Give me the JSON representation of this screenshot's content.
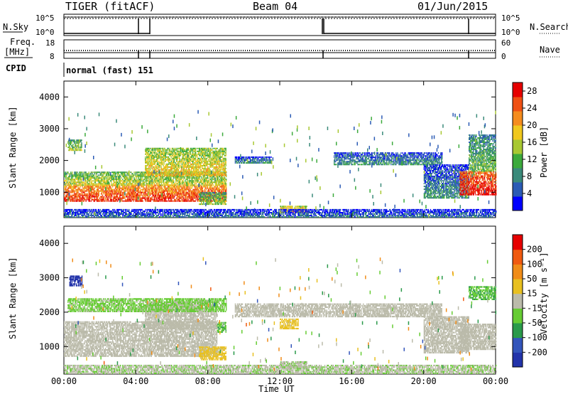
{
  "header": {
    "title": "TIGER (fitACF)",
    "beam": "Beam 04",
    "date": "01/Jun/2015"
  },
  "labels": {
    "n_sky": "N.Sky",
    "freq": "Freq.",
    "mhz": "[MHz]",
    "cpid": "CPID",
    "n_search": "N.Search",
    "nave": "Nave",
    "cpid_value": "normal (fast) 151",
    "power_unit": "Power [dB]",
    "velocity_unit": "Velocity [m s⁻¹]"
  },
  "panels": {
    "noise": {
      "left_ticks": [
        "10^5",
        "10^0"
      ],
      "right_ticks": [
        "10^5",
        "10^0"
      ]
    },
    "freq": {
      "left_ticks": [
        "18",
        "8"
      ],
      "right_ticks": [
        "60",
        "0"
      ]
    }
  },
  "colors": {
    "power_scale": [
      "#0000ff",
      "#2b5bb5",
      "#3a8a7a",
      "#3caa3c",
      "#a8c832",
      "#f0c81e",
      "#f58c1e",
      "#ef5014",
      "#e60000"
    ],
    "velocity_scale": [
      "#2233aa",
      "#3355bb",
      "#2a9a4a",
      "#66cc33",
      "#bbbbaa",
      "#e8c020",
      "#f08c18",
      "#f05a10",
      "#e60000"
    ],
    "ground_scatter": "#bbbbaa"
  },
  "chart_data": [
    {
      "type": "heatmap",
      "title": "Power",
      "xlabel": "Time UT",
      "ylabel": "Slant Range [km]",
      "x_ticks": [
        "00:00",
        "04:00",
        "08:00",
        "12:00",
        "16:00",
        "20:00",
        "00:00"
      ],
      "xlim": [
        0,
        24
      ],
      "ylim": [
        200,
        4500
      ],
      "y_ticks": [
        1000,
        2000,
        3000,
        4000
      ],
      "colorbar": {
        "label": "Power [dB]",
        "ticks": [
          4,
          8,
          12,
          16,
          20,
          24,
          28
        ],
        "range": [
          0,
          30
        ]
      },
      "regions": [
        {
          "t0": 0.0,
          "t1": 9.0,
          "r0": 700,
          "r1": 1200,
          "level": 24
        },
        {
          "t0": 0.0,
          "t1": 9.0,
          "r0": 1200,
          "r1": 1650,
          "level": 14
        },
        {
          "t0": 0.2,
          "t1": 1.0,
          "r0": 2300,
          "r1": 2650,
          "level": 12
        },
        {
          "t0": 4.5,
          "t1": 9.0,
          "r0": 1500,
          "r1": 2400,
          "level": 16
        },
        {
          "t0": 7.5,
          "t1": 9.0,
          "r0": 600,
          "r1": 1000,
          "level": 12
        },
        {
          "t0": 12.0,
          "t1": 13.5,
          "r0": 350,
          "r1": 550,
          "level": 18
        },
        {
          "t0": 9.5,
          "t1": 11.5,
          "r0": 1900,
          "r1": 2100,
          "level": 6
        },
        {
          "t0": 15.0,
          "t1": 21.0,
          "r0": 1850,
          "r1": 2250,
          "level": 6
        },
        {
          "t0": 20.0,
          "t1": 22.5,
          "r0": 800,
          "r1": 1850,
          "level": 6
        },
        {
          "t0": 22.0,
          "t1": 24.0,
          "r0": 900,
          "r1": 1650,
          "level": 26
        },
        {
          "t0": 22.5,
          "t1": 24.0,
          "r0": 1650,
          "r1": 2800,
          "level": 10
        },
        {
          "t0": 0.0,
          "t1": 24.0,
          "r0": 200,
          "r1": 450,
          "level": 4
        }
      ]
    },
    {
      "type": "heatmap",
      "title": "Velocity",
      "xlabel": "Time UT",
      "ylabel": "Slant Range [km]",
      "x_ticks": [
        "00:00",
        "04:00",
        "08:00",
        "12:00",
        "16:00",
        "20:00",
        "00:00"
      ],
      "xlim": [
        0,
        24
      ],
      "ylim": [
        200,
        4500
      ],
      "y_ticks": [
        1000,
        2000,
        3000,
        4000
      ],
      "colorbar": {
        "label": "Velocity [m s⁻¹]",
        "ticks": [
          -200,
          -100,
          -50,
          -15,
          15,
          50,
          100,
          200
        ],
        "range": [
          -250,
          250
        ]
      },
      "regions": [
        {
          "t0": 0.0,
          "t1": 8.5,
          "r0": 700,
          "r1": 1700,
          "level": 0
        },
        {
          "t0": 4.5,
          "t1": 8.5,
          "r0": 1500,
          "r1": 2300,
          "level": 0
        },
        {
          "t0": 0.3,
          "t1": 1.0,
          "r0": 2750,
          "r1": 3050,
          "level": -220
        },
        {
          "t0": 0.2,
          "t1": 9.0,
          "r0": 2000,
          "r1": 2400,
          "level": -40
        },
        {
          "t0": 7.5,
          "t1": 9.0,
          "r0": 600,
          "r1": 1000,
          "level": 45
        },
        {
          "t0": 8.5,
          "t1": 9.0,
          "r0": 1400,
          "r1": 1700,
          "level": -80
        },
        {
          "t0": 12.0,
          "t1": 13.5,
          "r0": 350,
          "r1": 550,
          "level": -20
        },
        {
          "t0": 12.0,
          "t1": 13.0,
          "r0": 1500,
          "r1": 1800,
          "level": 45
        },
        {
          "t0": 9.5,
          "t1": 21.0,
          "r0": 1850,
          "r1": 2250,
          "level": 0
        },
        {
          "t0": 20.0,
          "t1": 22.5,
          "r0": 800,
          "r1": 1850,
          "level": 0
        },
        {
          "t0": 22.0,
          "t1": 24.0,
          "r0": 900,
          "r1": 1650,
          "level": 0
        },
        {
          "t0": 22.5,
          "t1": 24.0,
          "r0": 2350,
          "r1": 2750,
          "level": -80
        },
        {
          "t0": 0.0,
          "t1": 24.0,
          "r0": 200,
          "r1": 450,
          "level": -20
        }
      ]
    }
  ]
}
